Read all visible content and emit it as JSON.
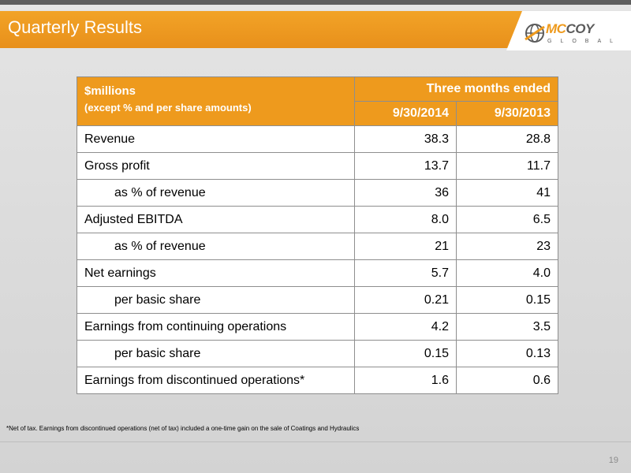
{
  "header": {
    "title": "Quarterly Results",
    "logo_word_mc": "MC",
    "logo_word_rest": "COY",
    "logo_sub": "GLOBAL",
    "accent_color": "#ee9a1d"
  },
  "table": {
    "label_line1": "$millions",
    "label_line2": "(except  % and per share amounts)",
    "period_header": "Three months ended",
    "columns": [
      "9/30/2014",
      "9/30/2013"
    ],
    "rows": [
      {
        "label": "Revenue",
        "values": [
          "38.3",
          "28.8"
        ],
        "indent": false
      },
      {
        "label": "Gross profit",
        "values": [
          "13.7",
          "11.7"
        ],
        "indent": false
      },
      {
        "label": "as % of revenue",
        "values": [
          "36",
          "41"
        ],
        "indent": true
      },
      {
        "label": "Adjusted EBITDA",
        "values": [
          "8.0",
          "6.5"
        ],
        "indent": false
      },
      {
        "label": "as % of revenue",
        "values": [
          "21",
          "23"
        ],
        "indent": true
      },
      {
        "label": "Net earnings",
        "values": [
          "5.7",
          "4.0"
        ],
        "indent": false
      },
      {
        "label": "per basic share",
        "values": [
          "0.21",
          "0.15"
        ],
        "indent": true
      },
      {
        "label": "Earnings from continuing operations",
        "values": [
          "4.2",
          "3.5"
        ],
        "indent": false
      },
      {
        "label": "per basic share",
        "values": [
          "0.15",
          "0.13"
        ],
        "indent": true
      },
      {
        "label": "Earnings from discontinued operations*",
        "values": [
          "1.6",
          "0.6"
        ],
        "indent": false
      }
    ]
  },
  "footnote": "*Net of tax. Earnings from discontinued operations (net of tax) included a one-time gain on the sale of Coatings and Hydraulics",
  "page_number": "19"
}
